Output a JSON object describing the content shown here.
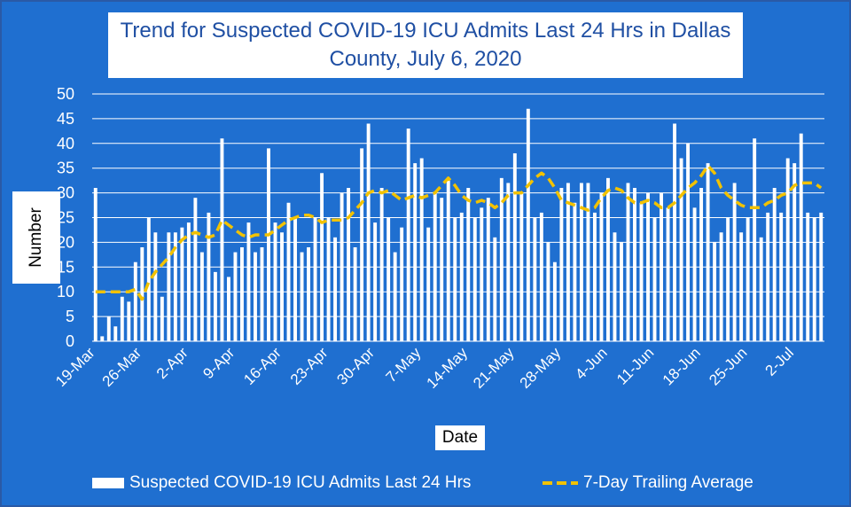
{
  "chart_data": {
    "type": "bar",
    "title": "Trend for Suspected COVID-19 ICU Admits Last 24 Hrs in Dallas County, July 6, 2020",
    "title_lines": [
      "Trend for Suspected COVID-19 ICU Admits Last 24 Hrs in Dallas",
      "County, July 6, 2020"
    ],
    "xlabel": "Date",
    "ylabel": "Number",
    "ylim": [
      0,
      50
    ],
    "yticks": [
      0,
      5,
      10,
      15,
      20,
      25,
      30,
      35,
      40,
      45,
      50
    ],
    "xticks": [
      "19-Mar",
      "26-Mar",
      "2-Apr",
      "9-Apr",
      "16-Apr",
      "23-Apr",
      "30-Apr",
      "7-May",
      "14-May",
      "21-May",
      "28-May",
      "4-Jun",
      "11-Jun",
      "18-Jun",
      "25-Jun",
      "2-Jul"
    ],
    "x_start": "19-Mar",
    "x_end": "6-Jul",
    "grid": true,
    "legend_position": "bottom",
    "colors": {
      "background": "#1f6fd0",
      "bars": "#ffffff",
      "average": "#f2c200",
      "grid": "#ffffff",
      "title": "#1f4fa3"
    },
    "series": [
      {
        "name": "Suspected COVID-19 ICU Admits Last 24 Hrs",
        "kind": "bar",
        "values": [
          31,
          1,
          5,
          3,
          9,
          8,
          16,
          19,
          25,
          22,
          9,
          22,
          22,
          23,
          24,
          29,
          18,
          26,
          14,
          41,
          13,
          18,
          19,
          24,
          18,
          19,
          39,
          24,
          22,
          28,
          25,
          18,
          19,
          25,
          34,
          25,
          21,
          30,
          31,
          19,
          39,
          44,
          24,
          31,
          25,
          18,
          23,
          43,
          36,
          37,
          23,
          30,
          29,
          33,
          25,
          26,
          31,
          25,
          27,
          29,
          21,
          33,
          32,
          38,
          30,
          47,
          25,
          26,
          20,
          16,
          31,
          32,
          28,
          32,
          32,
          26,
          30,
          33,
          22,
          20,
          32,
          31,
          28,
          30,
          25,
          30,
          27,
          44,
          37,
          40,
          27,
          31,
          36,
          20,
          22,
          25,
          32,
          22,
          25,
          41,
          21,
          26,
          31,
          26,
          37,
          36,
          42,
          26,
          25,
          26
        ]
      },
      {
        "name": "7-Day Trailing Average",
        "kind": "line",
        "values": [
          10,
          10,
          10,
          10,
          10,
          10,
          10.5,
          8.5,
          12,
          14,
          15.5,
          17,
          19,
          20.5,
          21.5,
          22,
          21.5,
          21,
          21.5,
          24.5,
          23.5,
          22.5,
          21.5,
          21,
          21.5,
          21.5,
          21.5,
          22.5,
          23.5,
          24.5,
          25,
          25.5,
          25.5,
          25,
          24,
          24.5,
          24.5,
          24.5,
          25,
          26.5,
          28,
          30,
          30.5,
          30,
          30.5,
          29.5,
          28.5,
          29,
          29.5,
          29,
          29.5,
          30,
          31.5,
          33,
          31.5,
          29.5,
          28.5,
          28,
          28.5,
          28,
          27,
          28,
          29.5,
          30,
          30,
          31.5,
          33,
          34,
          33,
          31,
          28.5,
          28,
          27.5,
          27,
          26.5,
          27,
          29,
          30.5,
          31,
          30.5,
          29,
          28,
          28,
          28.5,
          28,
          27,
          27,
          28,
          29.5,
          31,
          32,
          33.5,
          35.5,
          34,
          31,
          29.5,
          28.5,
          27.5,
          27,
          27,
          27,
          28,
          28.5,
          29.5,
          30,
          31.5,
          32,
          32,
          32,
          31
        ]
      }
    ]
  }
}
